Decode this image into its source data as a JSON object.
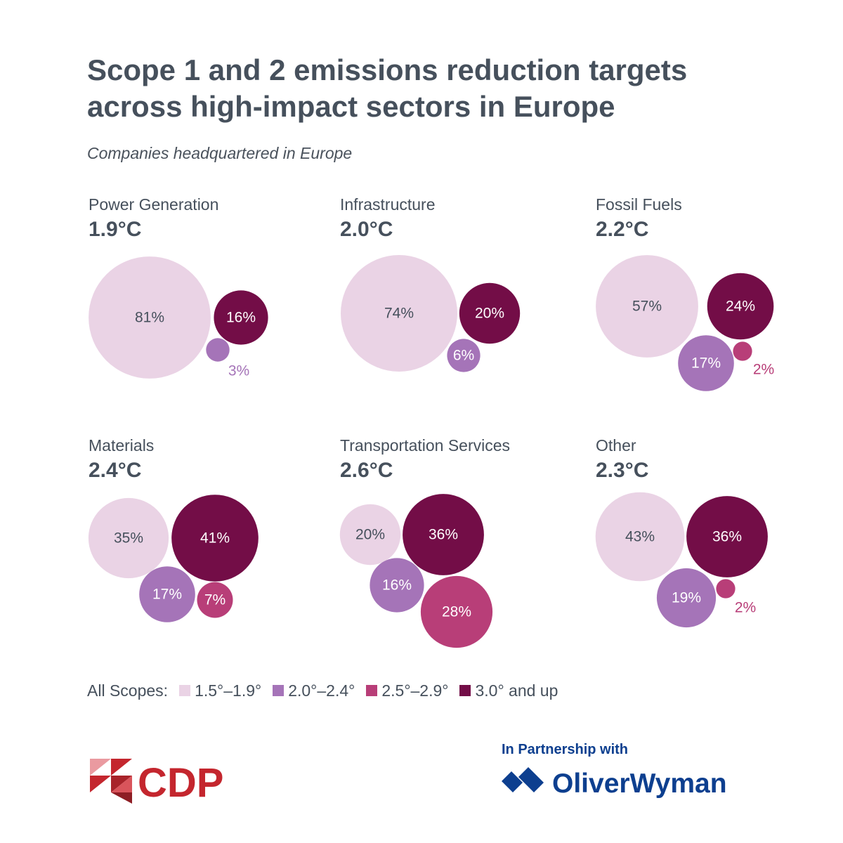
{
  "title_lines": [
    "Scope 1 and 2 emissions reduction targets",
    "across high-impact sectors in Europe"
  ],
  "subtitle": "Companies headquartered in Europe",
  "colors": {
    "band_1_5_1_9": "#ead3e5",
    "band_2_0_2_4": "#a574b8",
    "band_2_5_2_9": "#b83e78",
    "band_3_0_up": "#730d47",
    "text": "#46505c",
    "cdp_red": "#c4262e",
    "oliver_wyman_blue": "#0d3f8f"
  },
  "chart_data": {
    "type": "bubble",
    "value_unit": "%",
    "series": [
      {
        "name": "1.5°–1.9°",
        "color": "#ead3e5"
      },
      {
        "name": "2.0°–2.4°",
        "color": "#a574b8"
      },
      {
        "name": "2.5°–2.9°",
        "color": "#b83e78"
      },
      {
        "name": "3.0° and up",
        "color": "#730d47"
      }
    ],
    "panels": [
      {
        "sector": "Power Generation",
        "temperature": "1.9°C",
        "values": {
          "1.5°–1.9°": 81,
          "2.0°–2.4°": 3,
          "3.0° and up": 16
        }
      },
      {
        "sector": "Infrastructure",
        "temperature": "2.0°C",
        "values": {
          "1.5°–1.9°": 74,
          "2.0°–2.4°": 6,
          "3.0° and up": 20
        }
      },
      {
        "sector": "Fossil Fuels",
        "temperature": "2.2°C",
        "values": {
          "1.5°–1.9°": 57,
          "2.0°–2.4°": 17,
          "2.5°–2.9°": 2,
          "3.0° and up": 24
        }
      },
      {
        "sector": "Materials",
        "temperature": "2.4°C",
        "values": {
          "1.5°–1.9°": 35,
          "2.0°–2.4°": 17,
          "2.5°–2.9°": 7,
          "3.0° and up": 41
        }
      },
      {
        "sector": "Transportation Services",
        "temperature": "2.6°C",
        "values": {
          "1.5°–1.9°": 20,
          "2.0°–2.4°": 16,
          "2.5°–2.9°": 28,
          "3.0° and up": 36
        }
      },
      {
        "sector": "Other",
        "temperature": "2.3°C",
        "values": {
          "1.5°–1.9°": 43,
          "2.0°–2.4°": 19,
          "2.5°–2.9°": 2,
          "3.0° and up": 36
        }
      }
    ]
  },
  "legend": {
    "label": "All Scopes:",
    "items": [
      "1.5°–1.9°",
      "2.0°–2.4°",
      "2.5°–2.9°",
      "3.0° and up"
    ]
  },
  "footer": {
    "cdp_logo_text": "CDP",
    "partner_label": "In Partnership with",
    "partner_logo_text": "OliverWyman"
  }
}
